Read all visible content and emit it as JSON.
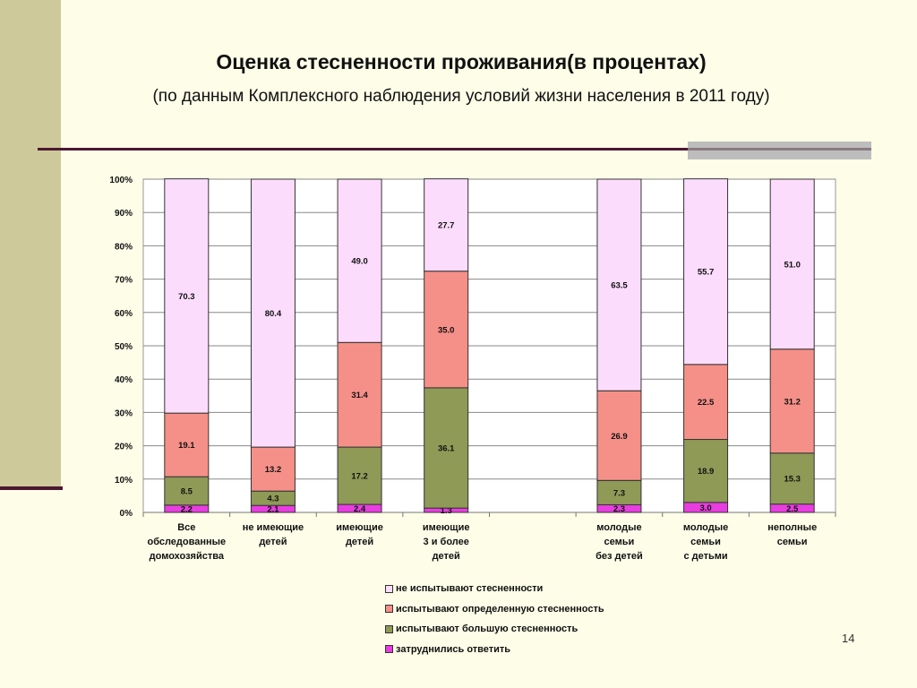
{
  "slide": {
    "title": "Оценка стесненности проживания(в процентах)",
    "subtitle": "(по данным Комплексного наблюдения условий жизни населения в 2011 году)",
    "page_number": "14"
  },
  "chart_data": {
    "type": "bar",
    "stacked": true,
    "percent": true,
    "ylim": [
      0,
      100
    ],
    "y_ticks": [
      "0%",
      "10%",
      "20%",
      "30%",
      "40%",
      "50%",
      "60%",
      "70%",
      "80%",
      "90%",
      "100%"
    ],
    "grid": true,
    "legend_position": "bottom",
    "categories": [
      "Все обследованные домохозяйства",
      "не имеющие детей",
      "имеющие детей",
      "имеющие 3 и более детей",
      "",
      "молодые семьи без детей",
      "молодые семьи с детьми",
      "неполные семьи"
    ],
    "category_lines": [
      [
        "Все",
        "обследованные",
        "домохозяйства"
      ],
      [
        "не имеющие",
        "детей"
      ],
      [
        "имеющие",
        "детей"
      ],
      [
        "имеющие",
        "3 и более",
        "детей"
      ],
      [],
      [
        "молодые",
        "семьи",
        "без детей"
      ],
      [
        "молодые",
        "семьи",
        "с детьми"
      ],
      [
        "неполные",
        "семьи"
      ]
    ],
    "series": [
      {
        "name": "затруднились ответить",
        "color": "#e83ee0",
        "values": [
          2.2,
          2.1,
          2.4,
          1.3,
          null,
          2.3,
          3.0,
          2.5
        ]
      },
      {
        "name": "испытывают большую стесненность",
        "color": "#8f9a57",
        "values": [
          8.5,
          4.3,
          17.2,
          36.1,
          null,
          7.3,
          18.9,
          15.3
        ]
      },
      {
        "name": "испытывают определенную стесненность",
        "color": "#f59088",
        "values": [
          19.1,
          13.2,
          31.4,
          35.0,
          null,
          26.9,
          22.5,
          31.2
        ]
      },
      {
        "name": "не испытывают стесненности",
        "color": "#fcdcfc",
        "values": [
          70.3,
          80.4,
          49.0,
          27.7,
          null,
          63.5,
          55.7,
          51.0
        ]
      }
    ],
    "legend_order": [
      3,
      2,
      1,
      0
    ]
  }
}
